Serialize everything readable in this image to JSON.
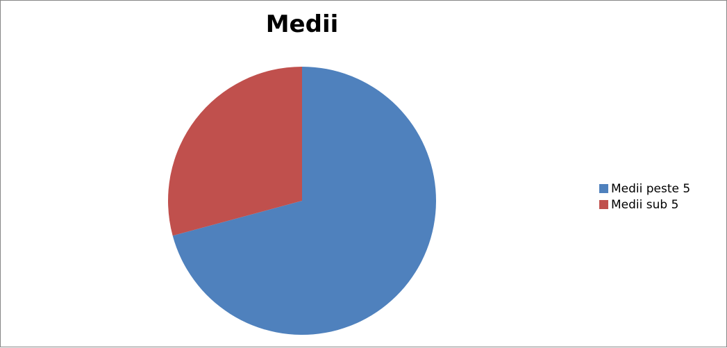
{
  "chart_data": {
    "type": "pie",
    "title": "Medii",
    "series": [
      {
        "name": "Medii peste 5",
        "value": 70.8,
        "color": "#4f81bd"
      },
      {
        "name": "Medii sub 5",
        "value": 29.2,
        "color": "#c0504d"
      }
    ],
    "start_angle_deg": 0,
    "direction": "clockwise",
    "legend_position": "right"
  }
}
